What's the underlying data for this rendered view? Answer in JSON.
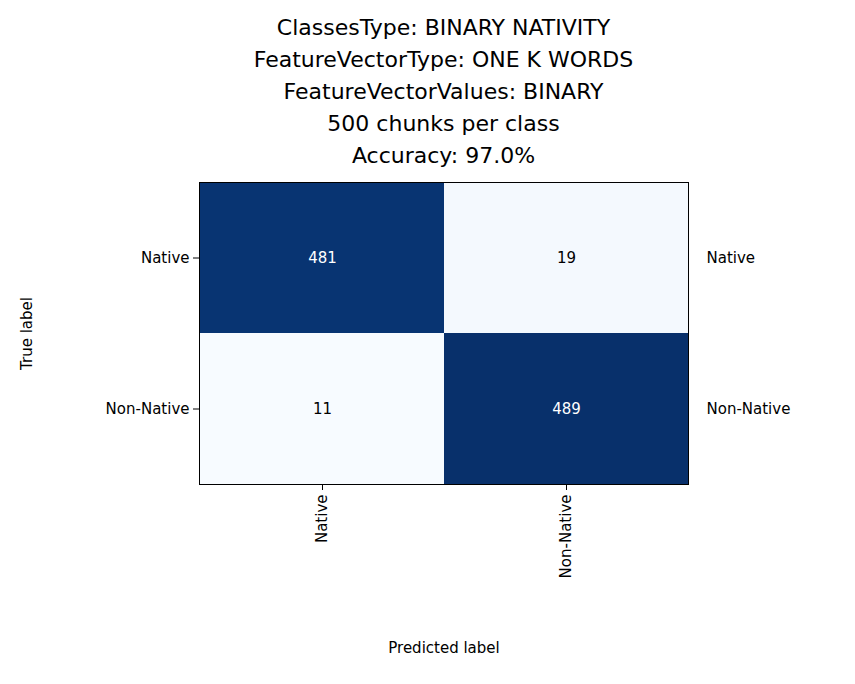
{
  "chart_data": {
    "type": "heatmap",
    "title": [
      "ClassesType: BINARY NATIVITY",
      "FeatureVectorType: ONE K WORDS",
      "FeatureVectorValues: BINARY",
      "500 chunks per class",
      "Accuracy: 97.0%"
    ],
    "x_label": "Predicted label",
    "y_label": "True label",
    "x_categories": [
      "Native",
      "Non-Native"
    ],
    "y_categories": [
      "Native",
      "Non-Native"
    ],
    "y2_categories": [
      "Native",
      "Non-Native"
    ],
    "cells": [
      [
        481,
        19
      ],
      [
        11,
        489
      ]
    ],
    "color": "Blues",
    "data_labels": true
  }
}
